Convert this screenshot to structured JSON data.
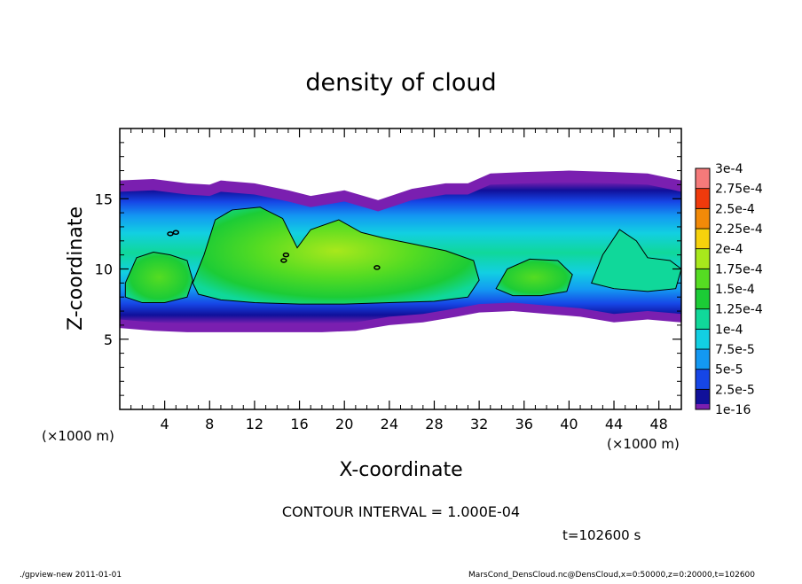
{
  "chart_data": {
    "type": "heatmap",
    "title": "density of cloud",
    "xlabel": "X-coordinate",
    "ylabel": "Z-coordinate",
    "x_unit": "(×1000 m)",
    "y_unit": "(×1000 m)",
    "xlim": [
      0,
      50
    ],
    "ylim": [
      0,
      20
    ],
    "x_ticks": [
      4,
      8,
      12,
      16,
      20,
      24,
      28,
      32,
      36,
      40,
      44,
      48
    ],
    "y_ticks": [
      5,
      10,
      15
    ],
    "contour_interval": "CONTOUR INTERVAL = 1.000E-04",
    "time": "t=102600 s",
    "colorbar": {
      "levels": [
        "1e-16",
        "2.5e-5",
        "5e-5",
        "7.5e-5",
        "1e-4",
        "1.25e-4",
        "1.5e-4",
        "1.75e-4",
        "2e-4",
        "2.25e-4",
        "2.5e-4",
        "2.75e-4",
        "3e-4"
      ],
      "colors": [
        "#7a1fb0",
        "#10109a",
        "#1646e6",
        "#1398f2",
        "#12cfe2",
        "#10d89a",
        "#1ccc36",
        "#55dc22",
        "#a8e81c",
        "#f6d20c",
        "#f28a08",
        "#ef3a0c",
        "#f57a7a"
      ]
    },
    "cloud_layer": {
      "approx_x_range": [
        0,
        50
      ],
      "approx_z_range": [
        5.5,
        16.5
      ],
      "max_density_approx": 0.00019,
      "high_density_core_x_range": [
        8,
        32
      ],
      "high_density_core_z_range": [
        7.5,
        14
      ]
    }
  },
  "footer": {
    "left": "./gpview-new   2011-01-01",
    "right": "MarsCond_DensCloud.nc@DensCloud,x=0:50000,z=0:20000,t=102600"
  }
}
